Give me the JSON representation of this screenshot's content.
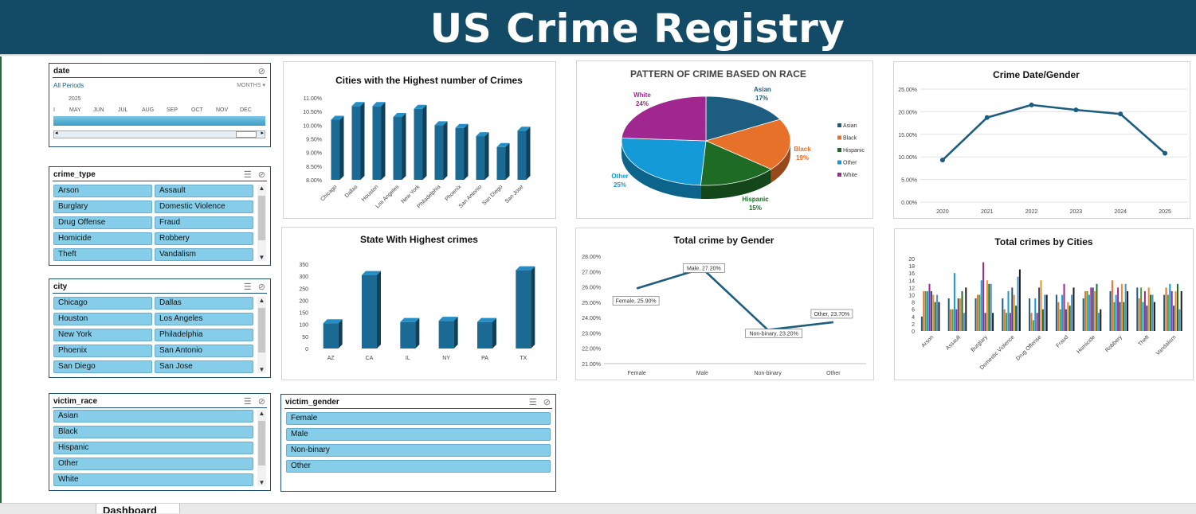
{
  "title": "US Crime Registry",
  "date_slicer": {
    "title": "date",
    "period_label": "All Periods",
    "level_label": "MONTHS",
    "year": "2025",
    "months": [
      "MAY",
      "JUN",
      "JUL",
      "AUG",
      "SEP",
      "OCT",
      "NOV",
      "DEC"
    ]
  },
  "slicers": {
    "crime_type": {
      "title": "crime_type",
      "items": [
        "Arson",
        "Assault",
        "Burglary",
        "Domestic Violence",
        "Drug Offense",
        "Fraud",
        "Homicide",
        "Robbery",
        "Theft",
        "Vandalism"
      ]
    },
    "city": {
      "title": "city",
      "items": [
        "Chicago",
        "Dallas",
        "Houston",
        "Los Angeles",
        "New York",
        "Philadelphia",
        "Phoenix",
        "San Antonio",
        "San Diego",
        "San Jose"
      ]
    },
    "victim_race": {
      "title": "victim_race",
      "items": [
        "Asian",
        "Black",
        "Hispanic",
        "Other",
        "White"
      ]
    },
    "victim_gender": {
      "title": "victim_gender",
      "items": [
        "Female",
        "Male",
        "Non-binary",
        "Other"
      ]
    }
  },
  "sheet_tab": "Dashboard",
  "colors": {
    "header": "#134b66",
    "bar": "#1b6a93",
    "chip": "#86cde9"
  },
  "chart_data": [
    {
      "type": "bar",
      "title": "Cities with the Highest number of Crimes",
      "categories": [
        "Chicago",
        "Dallas",
        "Houston",
        "Los Angeles",
        "New York",
        "Philadelphia",
        "Phoenix",
        "San Antonio",
        "San Diego",
        "San Jose"
      ],
      "values": [
        10.2,
        10.7,
        10.7,
        10.3,
        10.6,
        10.0,
        9.9,
        9.6,
        9.2,
        9.8
      ],
      "ylim": [
        8.0,
        11.0
      ],
      "yticks": [
        "8.00%",
        "8.50%",
        "9.00%",
        "9.50%",
        "10.00%",
        "10.50%",
        "11.00%"
      ]
    },
    {
      "type": "pie",
      "title": "PATTERN OF CRIME BASED ON RACE",
      "labels": [
        "Asian",
        "Black",
        "Hispanic",
        "Other",
        "White"
      ],
      "values": [
        17,
        19,
        15,
        25,
        24
      ],
      "value_labels": [
        "17%",
        "19%",
        "15%",
        "25%",
        "24%"
      ],
      "colors": [
        "#1c5d80",
        "#e8712a",
        "#1d6b25",
        "#149ad6",
        "#a0278f"
      ],
      "legend": "right"
    },
    {
      "type": "line",
      "title": "Crime Date/Gender",
      "x": [
        "2020",
        "2021",
        "2022",
        "2023",
        "2024",
        "2025"
      ],
      "values": [
        9.3,
        18.7,
        21.5,
        20.4,
        19.5,
        10.8
      ],
      "ylim": [
        0,
        25
      ],
      "yticks": [
        "0.00%",
        "5.00%",
        "10.00%",
        "15.00%",
        "20.00%",
        "25.00%"
      ]
    },
    {
      "type": "bar",
      "title": "State With Highest crimes",
      "categories": [
        "AZ",
        "CA",
        "IL",
        "NY",
        "PA",
        "TX"
      ],
      "values": [
        105,
        305,
        110,
        115,
        110,
        325
      ],
      "ylim": [
        0,
        350
      ],
      "yticks": [
        "0",
        "50",
        "100",
        "150",
        "200",
        "250",
        "300",
        "350"
      ]
    },
    {
      "type": "line",
      "title": "Total crime by Gender",
      "x": [
        "Female",
        "Male",
        "Non-binary",
        "Other"
      ],
      "values": [
        25.9,
        27.2,
        23.2,
        23.7
      ],
      "data_labels": [
        "Female, 25.90%",
        "Male, 27.20%",
        "Non-binary, 23.20%",
        "Other, 23.70%"
      ],
      "ylim": [
        21,
        28
      ],
      "yticks": [
        "21.00%",
        "22.00%",
        "23.00%",
        "24.00%",
        "25.00%",
        "26.00%",
        "27.00%",
        "28.00%"
      ]
    },
    {
      "type": "bar",
      "title": "Total crimes by Cities",
      "categories": [
        "Arson",
        "Assault",
        "Burglary",
        "Domestic Violence",
        "Drug Offense",
        "Fraud",
        "Homicide",
        "Robbery",
        "Theft",
        "Vandalism"
      ],
      "series": [
        {
          "values": [
            4,
            9,
            9,
            9,
            9,
            10,
            9,
            11,
            12,
            10
          ]
        },
        {
          "values": [
            11,
            6,
            10,
            6,
            5,
            8,
            11,
            14,
            9,
            12
          ]
        },
        {
          "values": [
            11,
            6,
            10,
            5,
            3,
            6,
            11,
            8,
            12,
            10
          ]
        },
        {
          "values": [
            11,
            16,
            14,
            11,
            9,
            10,
            10,
            10,
            8,
            13
          ]
        },
        {
          "values": [
            13,
            6,
            19,
            5,
            5,
            13,
            12,
            12,
            11,
            11
          ]
        },
        {
          "values": [
            11,
            9,
            5,
            12,
            12,
            6,
            12,
            8,
            7,
            7
          ]
        },
        {
          "values": [
            10,
            9,
            14,
            10,
            14,
            8,
            11,
            13,
            12,
            11
          ]
        },
        {
          "values": [
            8,
            11,
            13,
            7,
            6,
            7,
            13,
            8,
            10,
            13
          ]
        },
        {
          "values": [
            10,
            5,
            13,
            15,
            10,
            10,
            5,
            13,
            10,
            6
          ]
        },
        {
          "values": [
            8,
            12,
            5,
            17,
            10,
            12,
            6,
            11,
            8,
            11
          ]
        }
      ],
      "colors": [
        "#1c5d80",
        "#e8712a",
        "#4c9d3e",
        "#149ad6",
        "#a0278f",
        "#2b4f7a",
        "#f28b2b",
        "#1d6b25",
        "#4e8dc7",
        "#1b1b1b"
      ],
      "ylim": [
        0,
        20
      ],
      "yticks": [
        "0",
        "2",
        "4",
        "6",
        "8",
        "10",
        "12",
        "14",
        "16",
        "18",
        "20"
      ]
    }
  ]
}
